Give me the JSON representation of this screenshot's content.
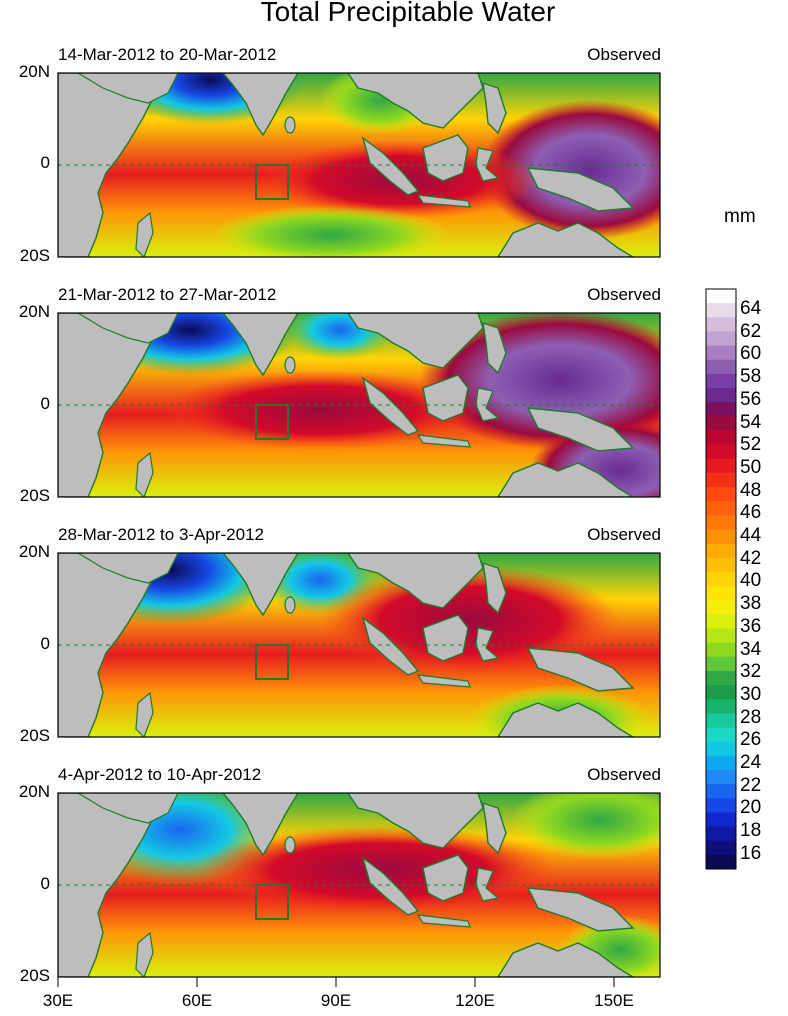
{
  "title": "Total Precipitable Water",
  "units": "mm",
  "colorbar": {
    "labels": [
      "64",
      "62",
      "60",
      "58",
      "56",
      "54",
      "52",
      "50",
      "48",
      "46",
      "44",
      "42",
      "40",
      "38",
      "36",
      "34",
      "32",
      "30",
      "28",
      "26",
      "24",
      "22",
      "20",
      "18",
      "16"
    ],
    "colors": [
      "#ffffff",
      "#e9dbea",
      "#d4bedc",
      "#c2a4d2",
      "#a97ec2",
      "#8d5fb3",
      "#7a3ea8",
      "#6a2a92",
      "#7c1060",
      "#9a0a3e",
      "#bb0730",
      "#d30a2a",
      "#e61b21",
      "#f23118",
      "#ff4a12",
      "#ff620e",
      "#ff7a0a",
      "#ff9208",
      "#ffaa06",
      "#ffbf05",
      "#ffd305",
      "#ffe406",
      "#f4ee08",
      "#d9f00c",
      "#b5e61a",
      "#8ed820",
      "#5fc83a",
      "#2fa846",
      "#1d9b48",
      "#17b36a",
      "#19c99b",
      "#1ad8c4",
      "#14c8e4",
      "#0fa9f0",
      "#1f8af5",
      "#1a66ef",
      "#1646e3",
      "#1228cf",
      "#1018a6",
      "#0f0e7c",
      "#0c0a55"
    ]
  },
  "panels": [
    {
      "date_range": "14-Mar-2012 to 20-Mar-2012",
      "tag": "Observed"
    },
    {
      "date_range": "21-Mar-2012 to 27-Mar-2012",
      "tag": "Observed"
    },
    {
      "date_range": "28-Mar-2012 to 3-Apr-2012",
      "tag": "Observed"
    },
    {
      "date_range": "4-Apr-2012 to 10-Apr-2012",
      "tag": "Observed"
    }
  ],
  "lat_labels": [
    "20N",
    "0",
    "20S"
  ],
  "lon_labels": [
    "30E",
    "60E",
    "90E",
    "120E",
    "150E"
  ]
}
